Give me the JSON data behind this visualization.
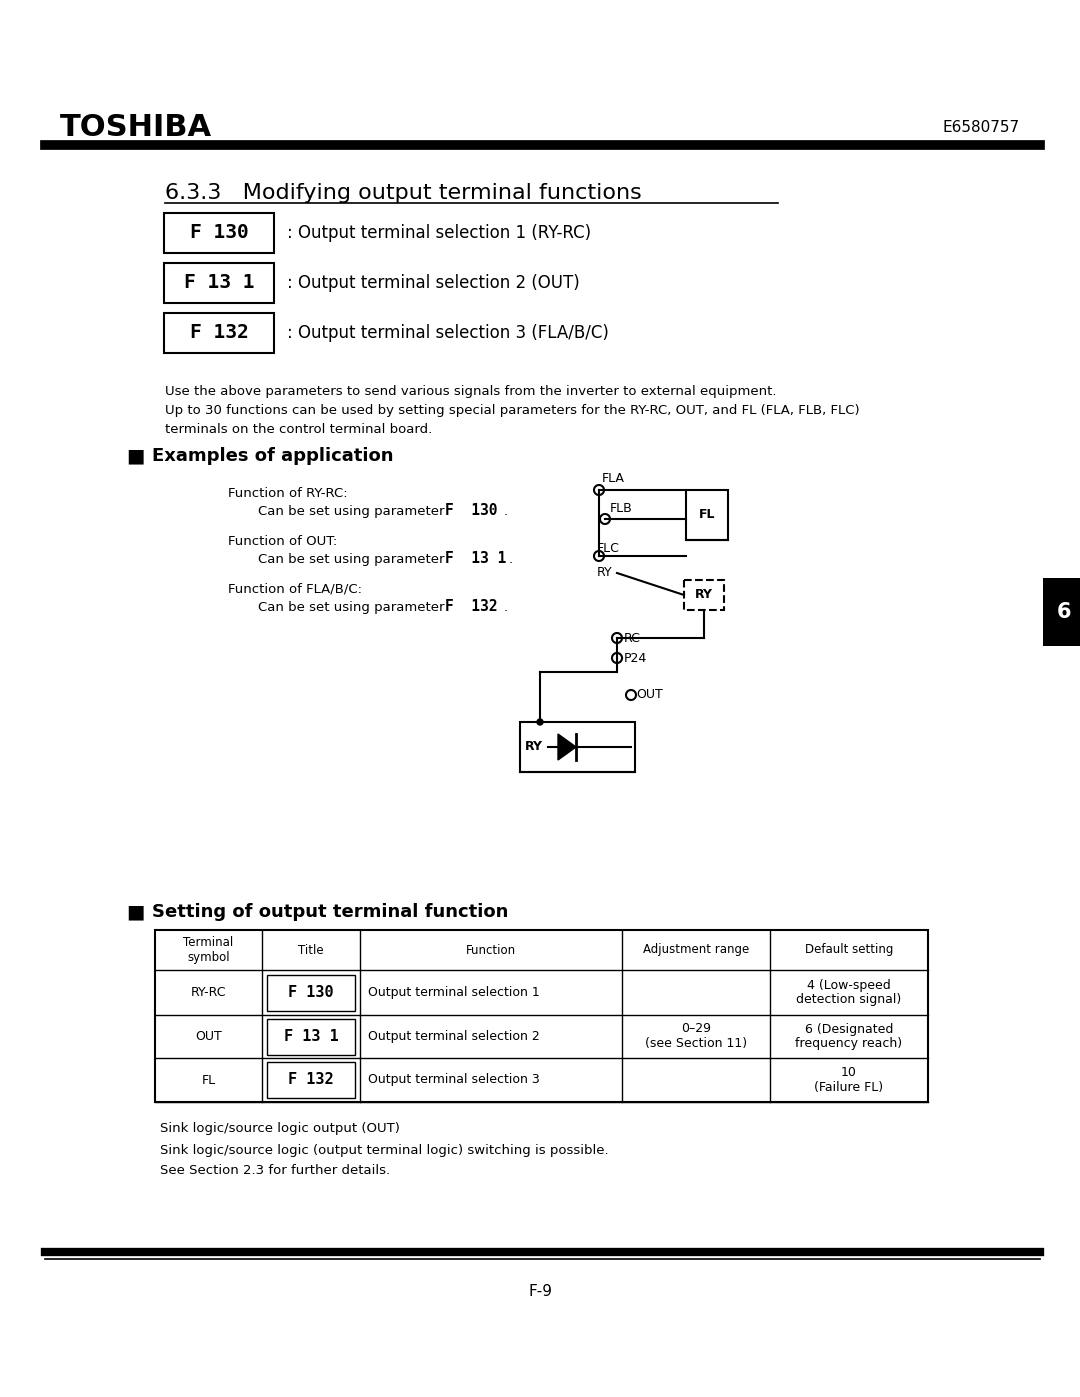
{
  "page_width": 10.8,
  "page_height": 13.97,
  "bg_color": "#ffffff",
  "header_toshiba": "TOSHIBA",
  "header_code": "E6580757",
  "section_title": "6.3.3   Modifying output terminal functions",
  "param1_text": "F 130",
  "param1_desc": ": Output terminal selection 1 (RY-RC)",
  "param2_text": "F 13 1",
  "param2_desc": ": Output terminal selection 2 (OUT)",
  "param3_text": "F 132",
  "param3_desc": ": Output terminal selection 3 (FLA/B/C)",
  "body_text1": "Use the above parameters to send various signals from the inverter to external equipment.",
  "body_text2": "Up to 30 functions can be used by setting special parameters for the RY-RC, OUT, and FL (FLA, FLB, FLC)",
  "body_text3": "terminals on the control terminal board.",
  "examples_title": "Examples of application",
  "func_ry_rc_line1": "Function of RY-RC:",
  "func_ry_rc_line2_pre": "Can be set using parameter ",
  "func_ry_rc_code": "F  130",
  "func_out_line1": "Function of OUT:",
  "func_out_line2_pre": "Can be set using parameter ",
  "func_out_code": "F  13 1",
  "func_fla_line1": "Function of FLA/B/C:",
  "func_fla_line2_pre": "Can be set using parameter ",
  "func_fla_code": "F  132",
  "setting_title": "Setting of output terminal function",
  "adj_range": "0–29\n(see Section 11)",
  "table_rows": [
    [
      "RY-RC",
      "F 130",
      "Output terminal selection 1",
      "4 (Low-speed\ndetection signal)"
    ],
    [
      "OUT",
      "F 13 1",
      "Output terminal selection 2",
      "6 (Designated\nfrequency reach)"
    ],
    [
      "FL",
      "F 132",
      "Output terminal selection 3",
      "10\n(Failure FL)"
    ]
  ],
  "note1": "Sink logic/source logic output (OUT)",
  "note2": "Sink logic/source logic (output terminal logic) switching is possible.",
  "note3": "See Section 2.3 for further details.",
  "page_num": "F-9",
  "tab_label": "6"
}
